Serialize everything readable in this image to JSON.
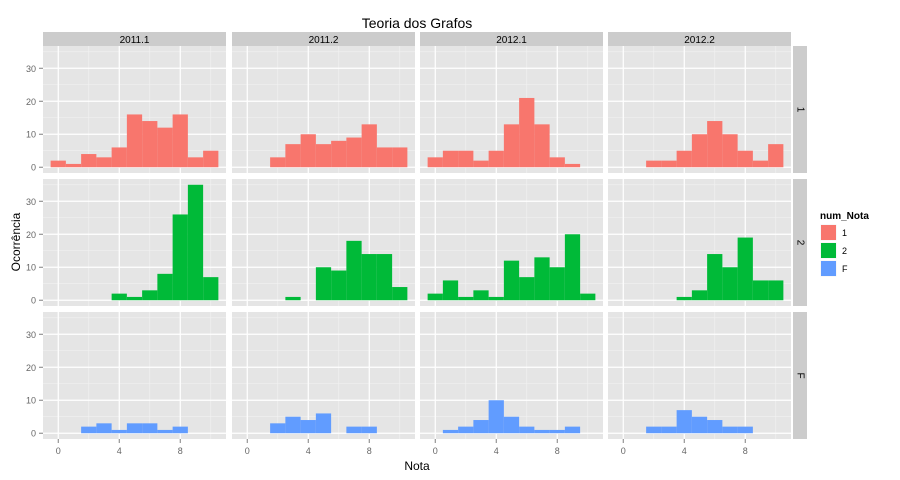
{
  "chart_data": {
    "type": "histogram-facet",
    "title": "Teoria dos Grafos",
    "xlabel": "Nota",
    "ylabel": "Ocorrência",
    "x_ticks": [
      0,
      4,
      8
    ],
    "y_ticks": [
      0,
      10,
      20,
      30
    ],
    "xlim": [
      -1,
      11
    ],
    "ylim": [
      -1.75,
      36.75
    ],
    "bin_width": 1,
    "bin_centers": [
      0,
      1,
      2,
      3,
      4,
      5,
      6,
      7,
      8,
      9,
      10
    ],
    "columns": [
      "2011.1",
      "2011.2",
      "2012.1",
      "2012.2"
    ],
    "rows": [
      "1",
      "2",
      "F"
    ],
    "legend": {
      "title": "num_Nota",
      "position": "right",
      "items": [
        {
          "label": "1",
          "color": "#F8766D"
        },
        {
          "label": "2",
          "color": "#00BA38"
        },
        {
          "label": "F",
          "color": "#619CFF"
        }
      ]
    },
    "grid": true,
    "panels": [
      {
        "row": "1",
        "col": "2011.1",
        "values": [
          2,
          1,
          4,
          3,
          6,
          16,
          14,
          12,
          16,
          3,
          5
        ]
      },
      {
        "row": "1",
        "col": "2011.2",
        "values": [
          0,
          0,
          3,
          7,
          10,
          7,
          8,
          9,
          13,
          6,
          6
        ]
      },
      {
        "row": "1",
        "col": "2012.1",
        "values": [
          3,
          5,
          5,
          2,
          5,
          13,
          21,
          13,
          3,
          1,
          0
        ]
      },
      {
        "row": "1",
        "col": "2012.2",
        "values": [
          0,
          0,
          2,
          2,
          5,
          10,
          14,
          10,
          5,
          2,
          7
        ]
      },
      {
        "row": "2",
        "col": "2011.1",
        "values": [
          0,
          0,
          0,
          0,
          2,
          1,
          3,
          8,
          26,
          35,
          7
        ]
      },
      {
        "row": "2",
        "col": "2011.2",
        "values": [
          0,
          0,
          0,
          1,
          0,
          10,
          9,
          18,
          14,
          14,
          4
        ]
      },
      {
        "row": "2",
        "col": "2012.1",
        "values": [
          2,
          6,
          1,
          3,
          1,
          12,
          7,
          13,
          10,
          20,
          2
        ]
      },
      {
        "row": "2",
        "col": "2012.2",
        "values": [
          0,
          0,
          0,
          0,
          1,
          3,
          14,
          10,
          19,
          6,
          6
        ]
      },
      {
        "row": "F",
        "col": "2011.1",
        "values": [
          0,
          0,
          2,
          3,
          1,
          3,
          3,
          1,
          2,
          0,
          0
        ]
      },
      {
        "row": "F",
        "col": "2011.2",
        "values": [
          0,
          0,
          3,
          5,
          4,
          6,
          0,
          2,
          2,
          0,
          0
        ]
      },
      {
        "row": "F",
        "col": "2012.1",
        "values": [
          0,
          1,
          2,
          4,
          10,
          5,
          2,
          1,
          1,
          2,
          0
        ]
      },
      {
        "row": "F",
        "col": "2012.2",
        "values": [
          0,
          0,
          2,
          2,
          7,
          5,
          4,
          2,
          2,
          0,
          0
        ]
      }
    ]
  }
}
